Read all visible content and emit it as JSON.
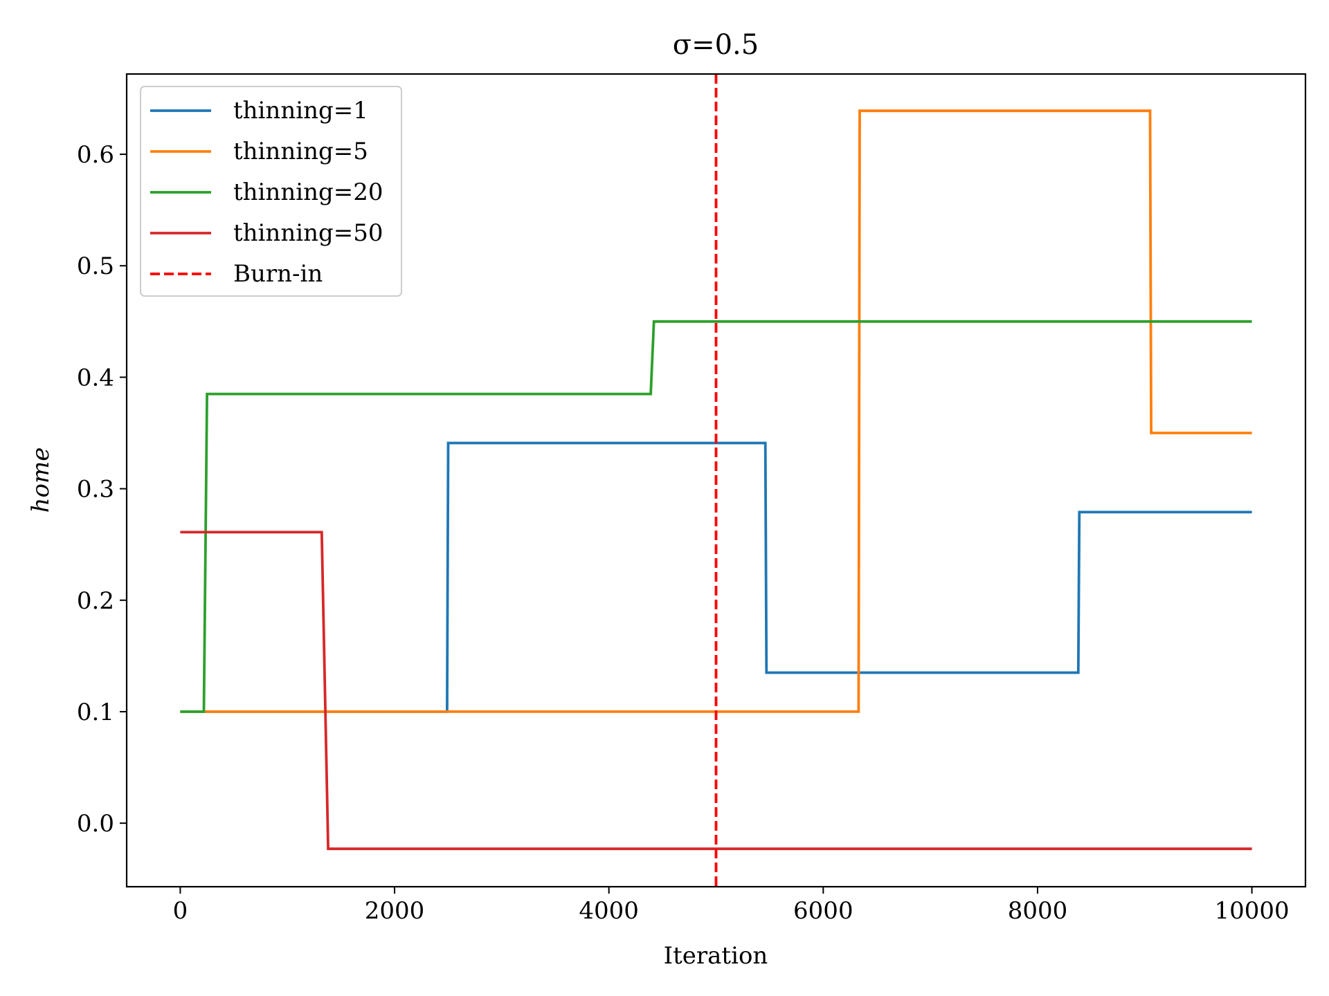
{
  "chart_data": {
    "type": "line",
    "title": "σ=0.5",
    "xlabel": "Iteration",
    "ylabel": "home",
    "xlim": [
      -500,
      10500
    ],
    "ylim": [
      -0.057,
      0.672
    ],
    "xticks": [
      0,
      2000,
      4000,
      6000,
      8000,
      10000
    ],
    "xtick_labels": [
      "0",
      "2000",
      "4000",
      "6000",
      "8000",
      "10000"
    ],
    "yticks": [
      0.0,
      0.1,
      0.2,
      0.3,
      0.4,
      0.5,
      0.6
    ],
    "ytick_labels": [
      "0.0",
      "0.1",
      "0.2",
      "0.3",
      "0.4",
      "0.5",
      "0.6"
    ],
    "grid": false,
    "legend_position": "top-left",
    "series": [
      {
        "name": "thinning=1",
        "color": "#1f77b4",
        "style": "solid",
        "points": [
          [
            0,
            0.1
          ],
          [
            2490,
            0.1
          ],
          [
            2500,
            0.341
          ],
          [
            5460,
            0.341
          ],
          [
            5470,
            0.135
          ],
          [
            8380,
            0.135
          ],
          [
            8390,
            0.279
          ],
          [
            10000,
            0.279
          ]
        ]
      },
      {
        "name": "thinning=5",
        "color": "#ff7f0e",
        "style": "solid",
        "points": [
          [
            0,
            0.1
          ],
          [
            6330,
            0.1
          ],
          [
            6340,
            0.639
          ],
          [
            9050,
            0.639
          ],
          [
            9060,
            0.35
          ],
          [
            10000,
            0.35
          ]
        ]
      },
      {
        "name": "thinning=20",
        "color": "#2ca02c",
        "style": "solid",
        "points": [
          [
            0,
            0.1
          ],
          [
            220,
            0.1
          ],
          [
            250,
            0.385
          ],
          [
            4390,
            0.385
          ],
          [
            4420,
            0.45
          ],
          [
            10000,
            0.45
          ]
        ]
      },
      {
        "name": "thinning=50",
        "color": "#d62728",
        "style": "solid",
        "points": [
          [
            0,
            0.261
          ],
          [
            1320,
            0.261
          ],
          [
            1380,
            -0.023
          ],
          [
            10000,
            -0.023
          ]
        ]
      }
    ],
    "vlines": [
      {
        "name": "Burn-in",
        "x": 5000,
        "color": "#ff0000",
        "style": "dashed"
      }
    ]
  }
}
